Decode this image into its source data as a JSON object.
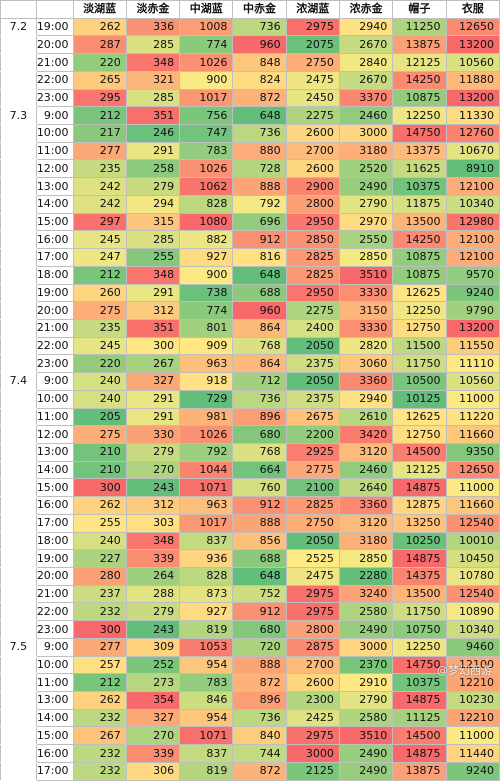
{
  "headers": [
    "",
    "",
    "淡湖蓝",
    "淡赤金",
    "中湖蓝",
    "中赤金",
    "浓湖蓝",
    "浓赤金",
    "帽子",
    "衣服"
  ],
  "rows": [
    {
      "date": "7.2",
      "time": "19:00",
      "values": [
        262,
        336,
        1008,
        736,
        2975,
        2940,
        11250,
        12650
      ]
    },
    {
      "date": "",
      "time": "20:00",
      "values": [
        287,
        285,
        774,
        960,
        2075,
        2670,
        13875,
        13200
      ]
    },
    {
      "date": "",
      "time": "21:00",
      "values": [
        220,
        348,
        1026,
        848,
        2750,
        2840,
        12125,
        10560
      ]
    },
    {
      "date": "",
      "time": "22:00",
      "values": [
        265,
        321,
        900,
        824,
        2475,
        2670,
        14250,
        11880
      ]
    },
    {
      "date": "",
      "time": "23:00",
      "values": [
        295,
        285,
        1017,
        872,
        2450,
        3370,
        10875,
        13200
      ]
    },
    {
      "date": "7.3",
      "time": "9:00",
      "values": [
        212,
        351,
        756,
        648,
        2275,
        2460,
        12250,
        11330
      ]
    },
    {
      "date": "",
      "time": "10:00",
      "values": [
        217,
        246,
        747,
        736,
        2600,
        3000,
        14750,
        12760
      ]
    },
    {
      "date": "",
      "time": "11:00",
      "values": [
        277,
        291,
        783,
        880,
        2700,
        3180,
        13375,
        10670
      ]
    },
    {
      "date": "",
      "time": "12:00",
      "values": [
        235,
        258,
        1026,
        728,
        2600,
        2520,
        11625,
        8910
      ]
    },
    {
      "date": "",
      "time": "13:00",
      "values": [
        242,
        279,
        1062,
        888,
        2900,
        2490,
        10375,
        12100
      ]
    },
    {
      "date": "",
      "time": "14:00",
      "values": [
        242,
        294,
        828,
        792,
        2800,
        2790,
        11875,
        10340
      ]
    },
    {
      "date": "",
      "time": "15:00",
      "values": [
        297,
        315,
        1080,
        696,
        2950,
        2970,
        13500,
        12980
      ]
    },
    {
      "date": "",
      "time": "16:00",
      "values": [
        245,
        285,
        882,
        912,
        2850,
        2550,
        14250,
        12100
      ]
    },
    {
      "date": "",
      "time": "17:00",
      "values": [
        247,
        255,
        927,
        816,
        2825,
        2850,
        10875,
        12100
      ]
    },
    {
      "date": "",
      "time": "18:00",
      "values": [
        212,
        348,
        900,
        648,
        2825,
        3510,
        10875,
        9570
      ]
    },
    {
      "date": "",
      "time": "19:00",
      "values": [
        260,
        291,
        738,
        688,
        2950,
        3330,
        12625,
        9240
      ]
    },
    {
      "date": "",
      "time": "20:00",
      "values": [
        275,
        312,
        774,
        960,
        2275,
        3150,
        12250,
        9790
      ]
    },
    {
      "date": "",
      "time": "21:00",
      "values": [
        235,
        351,
        801,
        864,
        2400,
        3330,
        12750,
        13200
      ]
    },
    {
      "date": "",
      "time": "22:00",
      "values": [
        245,
        300,
        909,
        768,
        2050,
        2820,
        11500,
        11550
      ]
    },
    {
      "date": "",
      "time": "23:00",
      "values": [
        220,
        267,
        963,
        864,
        2375,
        3060,
        11750,
        11110
      ]
    },
    {
      "date": "7.4",
      "time": "9:00",
      "values": [
        240,
        327,
        918,
        712,
        2050,
        3360,
        10500,
        10560
      ]
    },
    {
      "date": "",
      "time": "10:00",
      "values": [
        240,
        291,
        729,
        736,
        2375,
        2940,
        10125,
        11000
      ]
    },
    {
      "date": "",
      "time": "11:00",
      "values": [
        205,
        291,
        981,
        896,
        2675,
        2610,
        12625,
        11220
      ]
    },
    {
      "date": "",
      "time": "12:00",
      "values": [
        275,
        330,
        1026,
        680,
        2200,
        3420,
        12750,
        11660
      ]
    },
    {
      "date": "",
      "time": "13:00",
      "values": [
        210,
        279,
        792,
        768,
        2925,
        3120,
        14500,
        9350
      ]
    },
    {
      "date": "",
      "time": "14:00",
      "values": [
        210,
        270,
        1044,
        664,
        2775,
        2460,
        12125,
        12650
      ]
    },
    {
      "date": "",
      "time": "15:00",
      "values": [
        300,
        243,
        1071,
        760,
        2100,
        2640,
        14875,
        11000
      ]
    },
    {
      "date": "",
      "time": "16:00",
      "values": [
        262,
        312,
        963,
        912,
        2825,
        3360,
        12875,
        11660
      ]
    },
    {
      "date": "",
      "time": "17:00",
      "values": [
        255,
        303,
        1017,
        888,
        2750,
        3120,
        13250,
        12540
      ]
    },
    {
      "date": "",
      "time": "18:00",
      "values": [
        240,
        348,
        837,
        856,
        2050,
        3180,
        10250,
        10010
      ]
    },
    {
      "date": "",
      "time": "19:00",
      "values": [
        227,
        339,
        936,
        688,
        2525,
        2850,
        14875,
        10450
      ]
    },
    {
      "date": "",
      "time": "20:00",
      "values": [
        280,
        264,
        828,
        648,
        2475,
        2280,
        14375,
        10780
      ]
    },
    {
      "date": "",
      "time": "21:00",
      "values": [
        237,
        288,
        873,
        752,
        2975,
        3240,
        13500,
        12540
      ]
    },
    {
      "date": "",
      "time": "22:00",
      "values": [
        232,
        279,
        927,
        912,
        2975,
        2580,
        11750,
        10890
      ]
    },
    {
      "date": "",
      "time": "23:00",
      "values": [
        300,
        243,
        819,
        680,
        2800,
        2490,
        10750,
        10340
      ]
    },
    {
      "date": "7.5",
      "time": "9:00",
      "values": [
        277,
        309,
        1053,
        720,
        2875,
        3000,
        12250,
        9460
      ]
    },
    {
      "date": "",
      "time": "10:00",
      "values": [
        257,
        252,
        954,
        888,
        2700,
        2370,
        14750,
        12100
      ]
    },
    {
      "date": "",
      "time": "11:00",
      "values": [
        212,
        273,
        783,
        872,
        2600,
        2910,
        10375,
        12210
      ]
    },
    {
      "date": "",
      "time": "13:00",
      "values": [
        262,
        354,
        846,
        896,
        2300,
        2790,
        14875,
        10230
      ]
    },
    {
      "date": "",
      "time": "14:00",
      "values": [
        232,
        327,
        954,
        736,
        2425,
        2580,
        11125,
        12210
      ]
    },
    {
      "date": "",
      "time": "15:00",
      "values": [
        267,
        270,
        1071,
        840,
        2975,
        3510,
        14500,
        11000
      ]
    },
    {
      "date": "",
      "time": "16:00",
      "values": [
        232,
        339,
        837,
        744,
        3000,
        2490,
        14875,
        11440
      ]
    },
    {
      "date": "",
      "time": "17:00",
      "values": [
        232,
        306,
        819,
        872,
        2125,
        2490,
        13875,
        9240
      ]
    }
  ],
  "colors": {
    "low": "#63be7b",
    "mid": "#ffeb84",
    "high": "#f8696b"
  },
  "watermark": "@梦幻西游"
}
